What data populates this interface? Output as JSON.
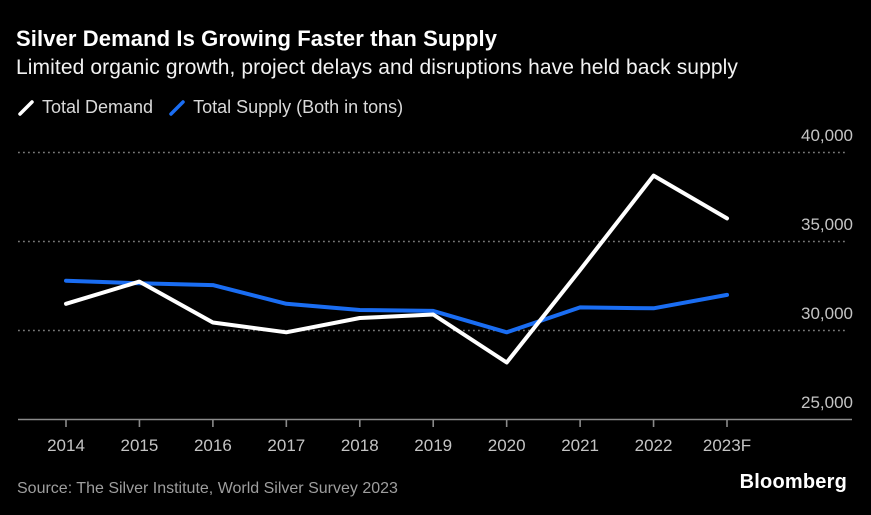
{
  "header": {
    "title": "Silver Demand Is Growing Faster than Supply",
    "subtitle": "Limited organic growth, project delays and disruptions have held back supply"
  },
  "legend": {
    "items": [
      {
        "label": "Total Demand",
        "color": "#ffffff",
        "icon": "white-slash-icon"
      },
      {
        "label": "Total Supply (Both in tons)",
        "color": "#1a6df2",
        "icon": "blue-slash-icon"
      }
    ]
  },
  "chart_data": {
    "type": "line",
    "unit": "tons",
    "categories": [
      "2014",
      "2015",
      "2016",
      "2017",
      "2018",
      "2019",
      "2020",
      "2021",
      "2022",
      "2023F"
    ],
    "series": [
      {
        "name": "Total Demand",
        "color": "#ffffff",
        "values": [
          31500,
          32750,
          30450,
          29900,
          30700,
          30900,
          28200,
          33400,
          38700,
          36300
        ]
      },
      {
        "name": "Total Supply",
        "color": "#1a6df2",
        "values": [
          32800,
          32650,
          32550,
          31500,
          31150,
          31100,
          29900,
          31300,
          31250,
          32000
        ]
      }
    ],
    "ylim": [
      25000,
      40000
    ],
    "y_ticks": [
      40000,
      35000,
      30000,
      25000
    ],
    "y_tick_labels": [
      "40,000",
      "35,000",
      "30,000",
      "25,000"
    ],
    "grid": "horizontal-dotted",
    "legend_position": "top-left",
    "colors": {
      "background": "#000000",
      "gridline": "#7a7a7a",
      "axis": "#8a8a8a",
      "tick_text": "#c4c4c4"
    }
  },
  "footer": {
    "source": "Source: The Silver Institute, World Silver Survey 2023",
    "brand": "Bloomberg"
  }
}
